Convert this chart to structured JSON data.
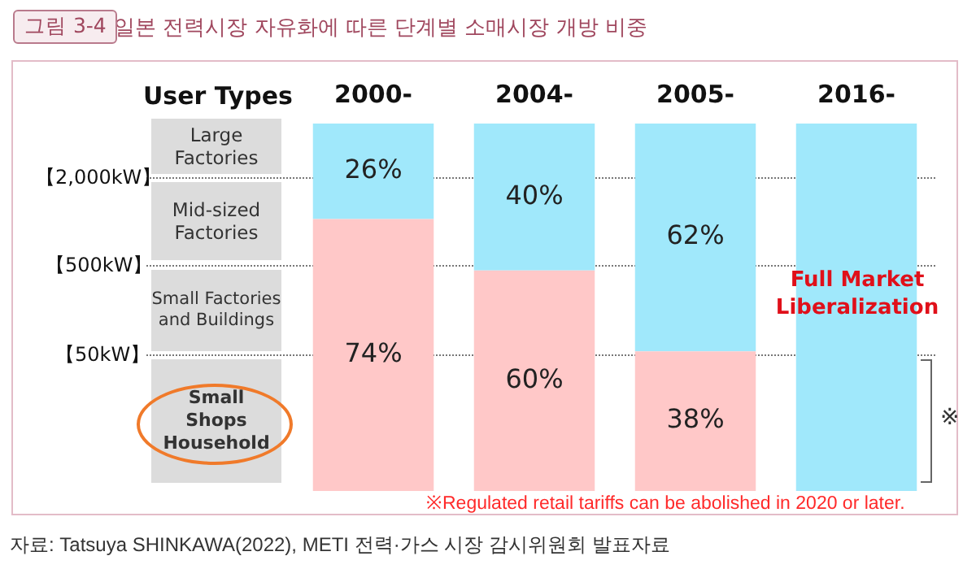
{
  "chart_data": {
    "type": "bar",
    "stacked": true,
    "title": "일본 전력시장 자유화에 따른 단계별 소매시장 개방 비중",
    "categories": [
      "2000-",
      "2004-",
      "2005-",
      "2016-"
    ],
    "series": [
      {
        "color": "#ffc8c8",
        "values": [
          74,
          60,
          38,
          null
        ],
        "value_labels": [
          "74%",
          "60%",
          "38%",
          null
        ]
      },
      {
        "color": "#a0e8fb",
        "values": [
          26,
          40,
          62,
          100
        ],
        "value_labels": [
          "26%",
          "40%",
          "62%",
          null
        ]
      }
    ],
    "annotations": [
      "그림 3-4",
      "User Types",
      "Large Factories",
      "Mid-sized Factories",
      "Small Factories and Buildings",
      "Small Shops Household",
      "【2,000kW】",
      "【500kW】",
      "【50kW】",
      "Full Market Liberalization",
      "※",
      "※Regulated retail tariffs can be abolished in 2020 or later.",
      "자료: Tatsuya SHINKAWA(2022), METI 전력·가스 시장 감시위원회 발표자료"
    ],
    "grid": false,
    "legend": false
  }
}
